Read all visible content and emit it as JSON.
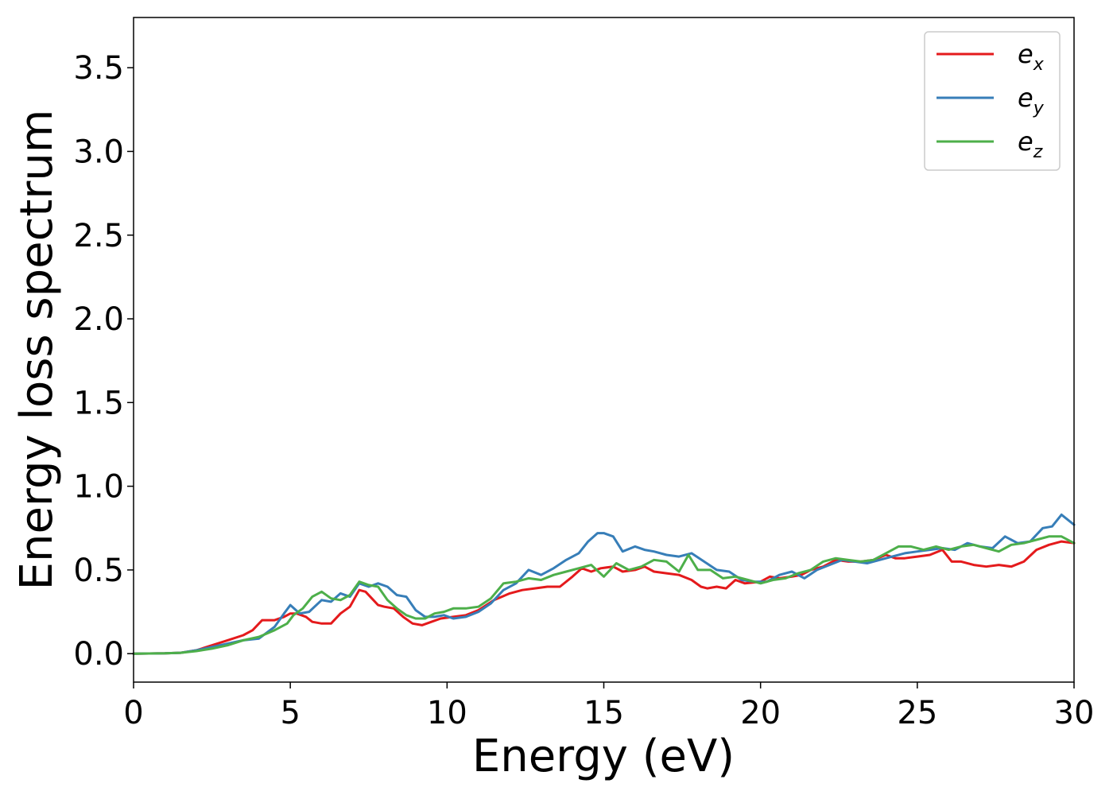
{
  "chart_data": {
    "type": "line",
    "title": "",
    "xlabel": "Energy (eV)",
    "ylabel": "Energy loss spectrum",
    "xlim": [
      0,
      30
    ],
    "ylim": [
      -0.17,
      3.8
    ],
    "xticks": [
      0,
      5,
      10,
      15,
      20,
      25,
      30
    ],
    "xtick_labels": [
      "0",
      "5",
      "10",
      "15",
      "20",
      "25",
      "30"
    ],
    "yticks": [
      0.0,
      0.5,
      1.0,
      1.5,
      2.0,
      2.5,
      3.0,
      3.5
    ],
    "ytick_labels": [
      "0.0",
      "0.5",
      "1.0",
      "1.5",
      "2.0",
      "2.5",
      "3.0",
      "3.5"
    ],
    "grid": false,
    "legend_position": "top-right",
    "series": [
      {
        "name": "e_x",
        "label_base": "e",
        "label_sub": "x",
        "color": "#e41a1c",
        "x": [
          0,
          1,
          1.5,
          2,
          2.5,
          3,
          3.5,
          3.8,
          4.1,
          4.5,
          4.8,
          5.0,
          5.2,
          5.5,
          5.7,
          6.0,
          6.3,
          6.6,
          6.9,
          7.2,
          7.4,
          7.6,
          7.8,
          8.0,
          8.3,
          8.6,
          8.9,
          9.2,
          9.5,
          9.8,
          10.2,
          10.6,
          11.0,
          11.5,
          12.0,
          12.4,
          12.8,
          13.2,
          13.6,
          14.0,
          14.3,
          14.6,
          14.9,
          15.3,
          15.6,
          16.0,
          16.3,
          16.6,
          17.0,
          17.4,
          17.8,
          18.1,
          18.3,
          18.6,
          18.9,
          19.2,
          19.5,
          20.0,
          20.3,
          20.6,
          21.0,
          21.3,
          21.6,
          22.0,
          22.4,
          22.8,
          23.2,
          23.6,
          24.0,
          24.3,
          24.6,
          25.0,
          25.4,
          25.8,
          26.1,
          26.4,
          26.8,
          27.2,
          27.6,
          28.0,
          28.4,
          28.8,
          29.2,
          29.6,
          30.0
        ],
        "y": [
          0.0,
          0.002,
          0.005,
          0.02,
          0.05,
          0.08,
          0.11,
          0.14,
          0.2,
          0.2,
          0.22,
          0.24,
          0.24,
          0.22,
          0.19,
          0.18,
          0.18,
          0.24,
          0.28,
          0.38,
          0.37,
          0.33,
          0.29,
          0.28,
          0.27,
          0.22,
          0.18,
          0.17,
          0.19,
          0.21,
          0.22,
          0.23,
          0.26,
          0.32,
          0.36,
          0.38,
          0.39,
          0.4,
          0.4,
          0.46,
          0.51,
          0.49,
          0.51,
          0.52,
          0.49,
          0.5,
          0.52,
          0.49,
          0.48,
          0.47,
          0.44,
          0.4,
          0.39,
          0.4,
          0.39,
          0.44,
          0.42,
          0.43,
          0.46,
          0.45,
          0.46,
          0.47,
          0.5,
          0.52,
          0.56,
          0.55,
          0.55,
          0.56,
          0.59,
          0.57,
          0.57,
          0.58,
          0.59,
          0.62,
          0.55,
          0.55,
          0.53,
          0.52,
          0.53,
          0.52,
          0.55,
          0.62,
          0.65,
          0.67,
          0.66
        ]
      },
      {
        "name": "e_y",
        "label_base": "e",
        "label_sub": "y",
        "color": "#377eb8",
        "x": [
          0,
          1,
          1.5,
          2,
          2.5,
          3,
          3.5,
          4.0,
          4.5,
          4.8,
          5.0,
          5.3,
          5.6,
          6.0,
          6.3,
          6.6,
          6.9,
          7.2,
          7.5,
          7.8,
          8.1,
          8.4,
          8.7,
          9.0,
          9.3,
          9.6,
          9.9,
          10.2,
          10.6,
          11.0,
          11.4,
          11.8,
          12.2,
          12.6,
          13.0,
          13.4,
          13.8,
          14.2,
          14.5,
          14.8,
          15.0,
          15.3,
          15.6,
          16.0,
          16.3,
          16.6,
          17.0,
          17.4,
          17.8,
          18.2,
          18.6,
          19.0,
          19.4,
          19.8,
          20.2,
          20.6,
          21.0,
          21.4,
          21.8,
          22.2,
          22.6,
          23.0,
          23.4,
          23.8,
          24.2,
          24.6,
          25.0,
          25.4,
          25.8,
          26.2,
          26.6,
          27.0,
          27.4,
          27.8,
          28.2,
          28.6,
          29.0,
          29.3,
          29.6,
          30.0
        ],
        "y": [
          0.0,
          0.002,
          0.005,
          0.02,
          0.04,
          0.06,
          0.08,
          0.09,
          0.16,
          0.24,
          0.29,
          0.24,
          0.25,
          0.32,
          0.31,
          0.36,
          0.34,
          0.42,
          0.4,
          0.42,
          0.4,
          0.35,
          0.34,
          0.26,
          0.22,
          0.22,
          0.23,
          0.21,
          0.22,
          0.25,
          0.3,
          0.38,
          0.42,
          0.5,
          0.47,
          0.51,
          0.56,
          0.6,
          0.67,
          0.72,
          0.72,
          0.7,
          0.61,
          0.64,
          0.62,
          0.61,
          0.59,
          0.58,
          0.6,
          0.55,
          0.5,
          0.49,
          0.44,
          0.43,
          0.43,
          0.47,
          0.49,
          0.45,
          0.5,
          0.53,
          0.56,
          0.55,
          0.54,
          0.56,
          0.58,
          0.6,
          0.61,
          0.62,
          0.63,
          0.62,
          0.66,
          0.64,
          0.63,
          0.7,
          0.66,
          0.67,
          0.75,
          0.76,
          0.83,
          0.77
        ]
      },
      {
        "name": "e_z",
        "label_base": "e",
        "label_sub": "z",
        "color": "#4daf4a",
        "x": [
          0,
          1,
          1.5,
          2,
          2.5,
          3,
          3.5,
          4.0,
          4.5,
          4.9,
          5.1,
          5.4,
          5.7,
          6.0,
          6.3,
          6.6,
          6.9,
          7.2,
          7.5,
          7.8,
          8.1,
          8.4,
          8.7,
          9.0,
          9.3,
          9.6,
          9.9,
          10.2,
          10.6,
          11.0,
          11.4,
          11.8,
          12.2,
          12.6,
          13.0,
          13.4,
          13.8,
          14.2,
          14.6,
          15.0,
          15.4,
          15.8,
          16.2,
          16.6,
          17.0,
          17.4,
          17.7,
          18.0,
          18.4,
          18.8,
          19.2,
          19.6,
          20.0,
          20.4,
          20.8,
          21.2,
          21.6,
          22.0,
          22.4,
          22.8,
          23.2,
          23.6,
          24.0,
          24.4,
          24.8,
          25.2,
          25.6,
          26.0,
          26.4,
          26.8,
          27.2,
          27.6,
          28.0,
          28.4,
          28.8,
          29.2,
          29.6,
          30.0
        ],
        "y": [
          0.0,
          0.002,
          0.005,
          0.015,
          0.03,
          0.05,
          0.08,
          0.1,
          0.14,
          0.18,
          0.23,
          0.27,
          0.34,
          0.37,
          0.33,
          0.32,
          0.35,
          0.43,
          0.41,
          0.4,
          0.32,
          0.27,
          0.23,
          0.21,
          0.21,
          0.24,
          0.25,
          0.27,
          0.27,
          0.28,
          0.33,
          0.42,
          0.43,
          0.45,
          0.44,
          0.47,
          0.49,
          0.51,
          0.53,
          0.46,
          0.54,
          0.5,
          0.52,
          0.56,
          0.55,
          0.49,
          0.59,
          0.5,
          0.5,
          0.45,
          0.46,
          0.44,
          0.42,
          0.44,
          0.45,
          0.48,
          0.5,
          0.55,
          0.57,
          0.56,
          0.55,
          0.56,
          0.6,
          0.64,
          0.64,
          0.62,
          0.64,
          0.62,
          0.64,
          0.65,
          0.63,
          0.61,
          0.65,
          0.66,
          0.68,
          0.7,
          0.7,
          0.66
        ]
      }
    ]
  }
}
